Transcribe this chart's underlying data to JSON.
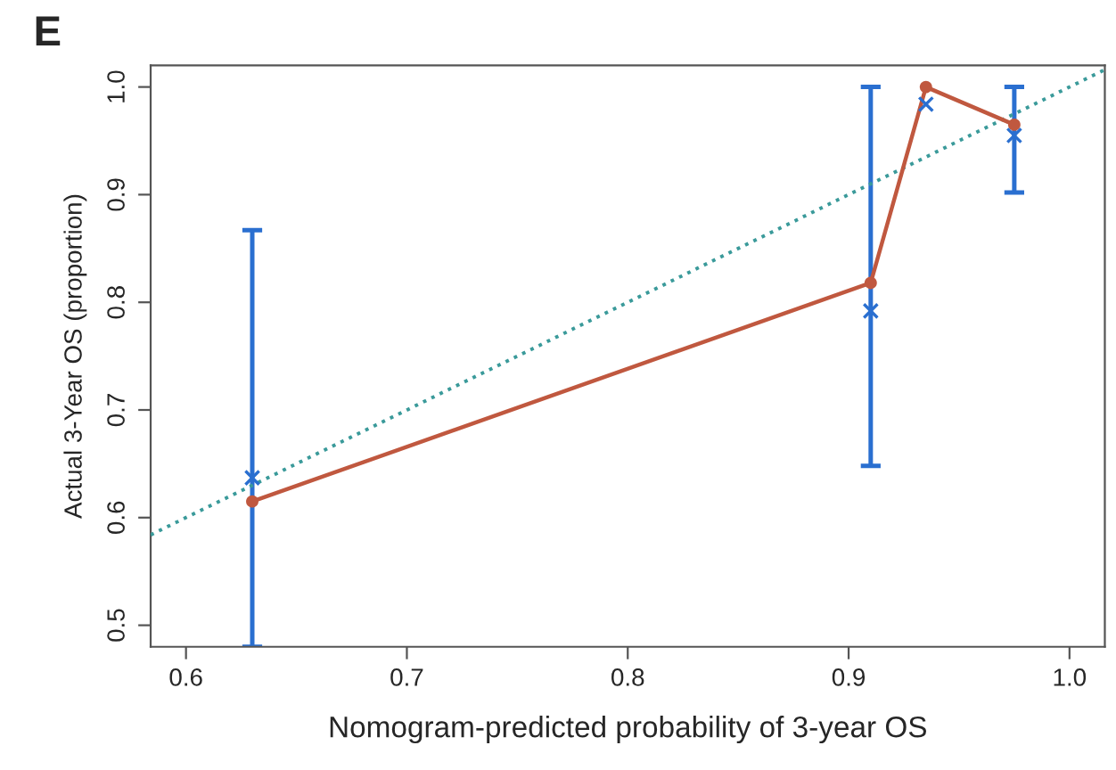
{
  "chart_data": {
    "type": "line",
    "title": "E",
    "xlabel": "Nomogram-predicted probability of 3-year OS",
    "ylabel": "Actual 3-Year OS (proportion)",
    "xlim": [
      0.584,
      1.016
    ],
    "ylim": [
      0.48,
      1.02
    ],
    "xticks": [
      0.6,
      0.7,
      0.8,
      0.9,
      {
        "value": 1.0,
        "label": "1.0"
      }
    ],
    "yticks": [
      0.5,
      0.6,
      0.7,
      0.8,
      0.9,
      {
        "value": 1.0,
        "label": "1.0"
      }
    ],
    "grid": false,
    "legend": false,
    "series": [
      {
        "color": "#3a9a9a",
        "line_style": "dotted",
        "marker": "none",
        "x": [
          0.584,
          1.016
        ],
        "values": [
          0.584,
          1.016
        ]
      },
      {
        "color": "#c0583f",
        "marker": "circle",
        "line_style": "solid",
        "x": [
          0.63,
          0.91,
          0.935,
          0.975
        ],
        "values": [
          0.615,
          0.818,
          1.0,
          0.965
        ]
      },
      {
        "type": "scatter",
        "color": "#2a6fd0",
        "marker": "cross",
        "x": [
          0.63,
          0.91,
          0.935,
          0.975
        ],
        "values": [
          0.637,
          0.792,
          0.984,
          0.955
        ],
        "errors": [
          [
            0.48,
            0.867
          ],
          [
            0.648,
            1.0
          ],
          null,
          [
            0.902,
            1.0
          ]
        ]
      }
    ]
  }
}
